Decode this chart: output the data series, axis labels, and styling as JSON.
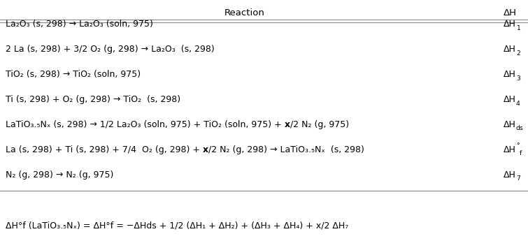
{
  "header_reaction": "Reaction",
  "header_dh": "ΔH",
  "rows": [
    {
      "reaction_parts": [
        {
          "text": "La",
          "style": "normal"
        },
        {
          "text": "2",
          "style": "sub"
        },
        {
          "text": "O",
          "style": "normal"
        },
        {
          "text": "3",
          "style": "sub"
        },
        {
          "text": " (s, 298) → La",
          "style": "normal"
        },
        {
          "text": "2",
          "style": "sub"
        },
        {
          "text": "O",
          "style": "normal"
        },
        {
          "text": "3",
          "style": "sub"
        },
        {
          "text": " (soln, 975)",
          "style": "normal"
        }
      ],
      "reaction_plain": "La₂O₃ (s, 298) → La₂O₃ (soln, 975)",
      "dh_main": "ΔH",
      "dh_sub": "1",
      "dh_sup": ""
    },
    {
      "reaction_plain": "2 La (s, 298) + 3/2 O₂ (g, 298) → La₂O₃  (s, 298)",
      "dh_main": "ΔH",
      "dh_sub": "2",
      "dh_sup": ""
    },
    {
      "reaction_plain": "TiO₂ (s, 298) → TiO₂ (soln, 975)",
      "dh_main": "ΔH",
      "dh_sub": "3",
      "dh_sup": ""
    },
    {
      "reaction_plain": "Ti (s, 298) + O₂ (g, 298) → TiO₂  (s, 298)",
      "dh_main": "ΔH",
      "dh_sub": "4",
      "dh_sup": ""
    },
    {
      "reaction_plain": "LaTiO₃.₅Nₓ (s, 298) → 1/2 La₂O₃ (soln, 975) + TiO₂ (soln, 975) + x/2 N₂ (g, 975)",
      "reaction_bold_x": true,
      "dh_main": "ΔH",
      "dh_sub": "ds",
      "dh_sup": ""
    },
    {
      "reaction_plain": "La (s, 298) + Ti (s, 298) + 7/4  O₂ (g, 298) + x/2 N₂ (g, 298) → LaTiO₃.₅Nₓ  (s, 298)",
      "reaction_bold_x": true,
      "dh_main": "ΔH",
      "dh_sub": "f",
      "dh_sup": "°"
    },
    {
      "reaction_plain": "N₂ (g, 298) → N₂ (g, 975)",
      "dh_main": "ΔH",
      "dh_sub": "7",
      "dh_sup": ""
    }
  ],
  "footer_plain": "ΔH°f (LaTiO₃.₅Nₓ) = ΔH°f = −ΔHds + 1/2 (ΔH₁ + ΔH₂) + (ΔH₃ + ΔH₄) + x/2 ΔH₇",
  "bg_color": "#ffffff",
  "text_color": "#000000",
  "font_size": 9.0,
  "header_font_size": 9.5
}
